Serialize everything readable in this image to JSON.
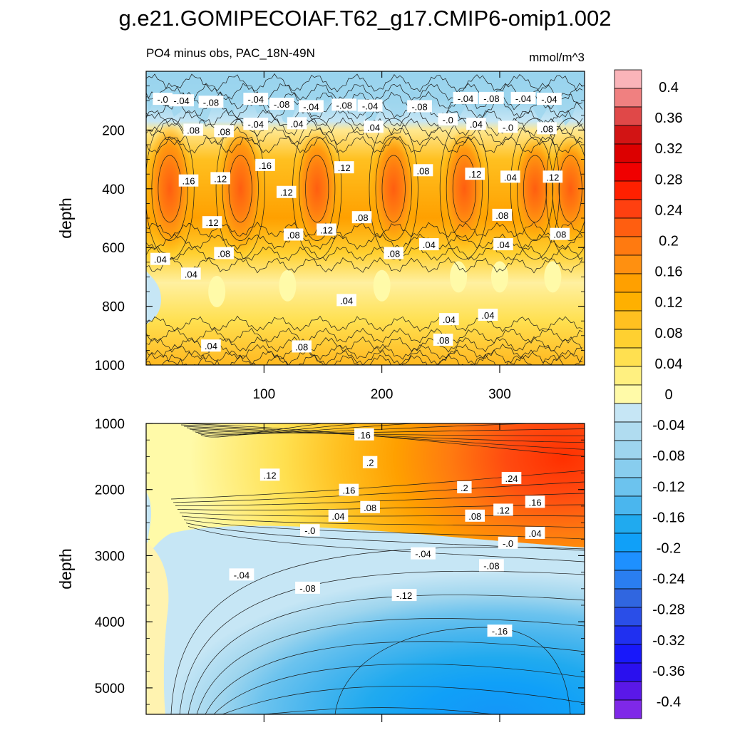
{
  "chart_data": [
    {
      "type": "heatmap",
      "title": "g.e21.GOMIPECOIAF.T62_g17.CMIP6-omip1.002",
      "subtitle": "PO4 minus obs, PAC_18N-49N",
      "units": "mmol/m^3",
      "panel": "upper",
      "ylabel": "depth",
      "xlabel": "",
      "xlim": [
        0,
        372
      ],
      "ylim": [
        0,
        1000
      ],
      "y_inverted": true,
      "x_ticks": [
        "100",
        "200",
        "300"
      ],
      "x_tick_values": [
        100,
        200,
        300
      ],
      "y_ticks": [
        "200",
        "400",
        "600",
        "800",
        "1000"
      ],
      "y_tick_values": [
        200,
        400,
        600,
        800,
        1000
      ],
      "description_values": {
        "surface_band_0_150m": -0.04,
        "core_maxima_near_400m": [
          0.2,
          0.2,
          0.18,
          0.18,
          0.18,
          0.16,
          0.16
        ],
        "core_maxima_months": [
          20,
          80,
          145,
          210,
          270,
          330,
          360
        ],
        "mid_layer_600_900m": 0.04,
        "near_1000m": 0.08
      },
      "contour_labels": [
        {
          "text": "-.0",
          "x": 14,
          "y": 95
        },
        {
          "text": "-.04",
          "x": 30,
          "y": 100
        },
        {
          "text": "-.08",
          "x": 55,
          "y": 105
        },
        {
          "text": "-.04",
          "x": 93,
          "y": 95
        },
        {
          "text": "-.08",
          "x": 115,
          "y": 112
        },
        {
          "text": "-.04",
          "x": 140,
          "y": 120
        },
        {
          "text": "-.08",
          "x": 168,
          "y": 115
        },
        {
          "text": "-.04",
          "x": 190,
          "y": 118
        },
        {
          "text": "-.08",
          "x": 232,
          "y": 120
        },
        {
          "text": "-.04",
          "x": 271,
          "y": 92
        },
        {
          "text": "-.08",
          "x": 293,
          "y": 92
        },
        {
          "text": "-.04",
          "x": 320,
          "y": 92
        },
        {
          "text": "-.04",
          "x": 342,
          "y": 95
        },
        {
          "text": "-.0",
          "x": 256,
          "y": 165
        },
        {
          "text": "-.0",
          "x": 307,
          "y": 190
        },
        {
          "text": "-.04",
          "x": 93,
          "y": 180
        },
        {
          "text": ".08",
          "x": 40,
          "y": 200
        },
        {
          "text": ".08",
          "x": 66,
          "y": 205
        },
        {
          "text": ".04",
          "x": 128,
          "y": 178
        },
        {
          "text": ".04",
          "x": 193,
          "y": 190
        },
        {
          "text": ".04",
          "x": 280,
          "y": 180
        },
        {
          "text": ".08",
          "x": 340,
          "y": 195
        },
        {
          "text": ".16",
          "x": 36,
          "y": 373
        },
        {
          "text": ".12",
          "x": 63,
          "y": 365
        },
        {
          "text": ".16",
          "x": 101,
          "y": 320
        },
        {
          "text": ".12",
          "x": 119,
          "y": 412
        },
        {
          "text": ".12",
          "x": 168,
          "y": 328
        },
        {
          "text": ".08",
          "x": 235,
          "y": 338
        },
        {
          "text": ".12",
          "x": 279,
          "y": 350
        },
        {
          "text": ".04",
          "x": 309,
          "y": 360
        },
        {
          "text": ".12",
          "x": 345,
          "y": 360
        },
        {
          "text": ".12",
          "x": 56,
          "y": 515
        },
        {
          "text": ".08",
          "x": 125,
          "y": 557
        },
        {
          "text": ".12",
          "x": 153,
          "y": 540
        },
        {
          "text": ".08",
          "x": 183,
          "y": 498
        },
        {
          "text": ".08",
          "x": 302,
          "y": 490
        },
        {
          "text": ".08",
          "x": 351,
          "y": 555
        },
        {
          "text": ".08",
          "x": 66,
          "y": 620
        },
        {
          "text": ".08",
          "x": 210,
          "y": 620
        },
        {
          "text": ".04",
          "x": 240,
          "y": 590
        },
        {
          "text": ".04",
          "x": 303,
          "y": 590
        },
        {
          "text": ".04",
          "x": 12,
          "y": 640
        },
        {
          "text": ".04",
          "x": 38,
          "y": 690
        },
        {
          "text": ".04",
          "x": 170,
          "y": 780
        },
        {
          "text": ".04",
          "x": 257,
          "y": 845
        },
        {
          "text": ".04",
          "x": 290,
          "y": 830
        },
        {
          "text": ".04",
          "x": 55,
          "y": 935
        },
        {
          "text": ".08",
          "x": 132,
          "y": 938
        },
        {
          "text": ".08",
          "x": 252,
          "y": 915
        }
      ]
    },
    {
      "type": "heatmap",
      "panel": "lower",
      "ylabel": "depth",
      "xlabel": "",
      "xlim": [
        0,
        372
      ],
      "ylim": [
        1000,
        5400
      ],
      "y_inverted": true,
      "y_ticks": [
        "1000",
        "2000",
        "3000",
        "4000",
        "5000"
      ],
      "y_tick_values": [
        1000,
        2000,
        3000,
        4000,
        5000
      ],
      "description_values": {
        "max_near_1650m_at_right": 0.28,
        "zero_crossing_depth_m": [
          2600,
          2850
        ],
        "min_near_4900m": -0.18
      },
      "contour_labels": [
        {
          "text": ".16",
          "x": 185,
          "y": 1170
        },
        {
          "text": ".2",
          "x": 190,
          "y": 1590
        },
        {
          "text": ".12",
          "x": 105,
          "y": 1780
        },
        {
          "text": ".24",
          "x": 310,
          "y": 1830
        },
        {
          "text": ".16",
          "x": 172,
          "y": 2010
        },
        {
          "text": ".2",
          "x": 270,
          "y": 1970
        },
        {
          "text": ".16",
          "x": 330,
          "y": 2190
        },
        {
          "text": ".08",
          "x": 190,
          "y": 2270
        },
        {
          "text": ".12",
          "x": 303,
          "y": 2310
        },
        {
          "text": ".04",
          "x": 163,
          "y": 2400
        },
        {
          "text": ".08",
          "x": 279,
          "y": 2400
        },
        {
          "text": ".04",
          "x": 330,
          "y": 2660
        },
        {
          "text": "-.0",
          "x": 139,
          "y": 2620
        },
        {
          "text": "-.0",
          "x": 307,
          "y": 2810
        },
        {
          "text": "-.04",
          "x": 235,
          "y": 2970
        },
        {
          "text": "-.08",
          "x": 293,
          "y": 3150
        },
        {
          "text": "-.04",
          "x": 81,
          "y": 3290
        },
        {
          "text": "-.08",
          "x": 137,
          "y": 3490
        },
        {
          "text": "-.12",
          "x": 219,
          "y": 3600
        },
        {
          "text": "-.16",
          "x": 300,
          "y": 4140
        }
      ]
    }
  ],
  "colorbar": {
    "labels": [
      "0.4",
      "0.36",
      "0.32",
      "0.28",
      "0.24",
      "0.2",
      "0.16",
      "0.12",
      "0.08",
      "0.04",
      "0",
      "-0.04",
      "-0.08",
      "-0.12",
      "-0.16",
      "-0.2",
      "-0.24",
      "-0.28",
      "-0.32",
      "-0.36",
      "-0.4"
    ],
    "colors": [
      "#fab4b9",
      "#f08080",
      "#e04848",
      "#d21414",
      "#dc0000",
      "#f00000",
      "#ff2000",
      "#ff4010",
      "#ff5e10",
      "#ff7a10",
      "#ff9010",
      "#ffa000",
      "#ffb000",
      "#ffc020",
      "#ffd030",
      "#ffe050",
      "#fff080",
      "#fffaa8",
      "#c6e6f5",
      "#b0dcf0",
      "#9ed5ee",
      "#88cdee",
      "#6cc3ee",
      "#4ab6ee",
      "#20aaef",
      "#10a0f8",
      "#1e90ff",
      "#2a7ef0",
      "#3066e0",
      "#2a4ee8",
      "#2030f0",
      "#1818fa",
      "#2a10ee",
      "#5a18e8",
      "#7f28e8"
    ]
  }
}
